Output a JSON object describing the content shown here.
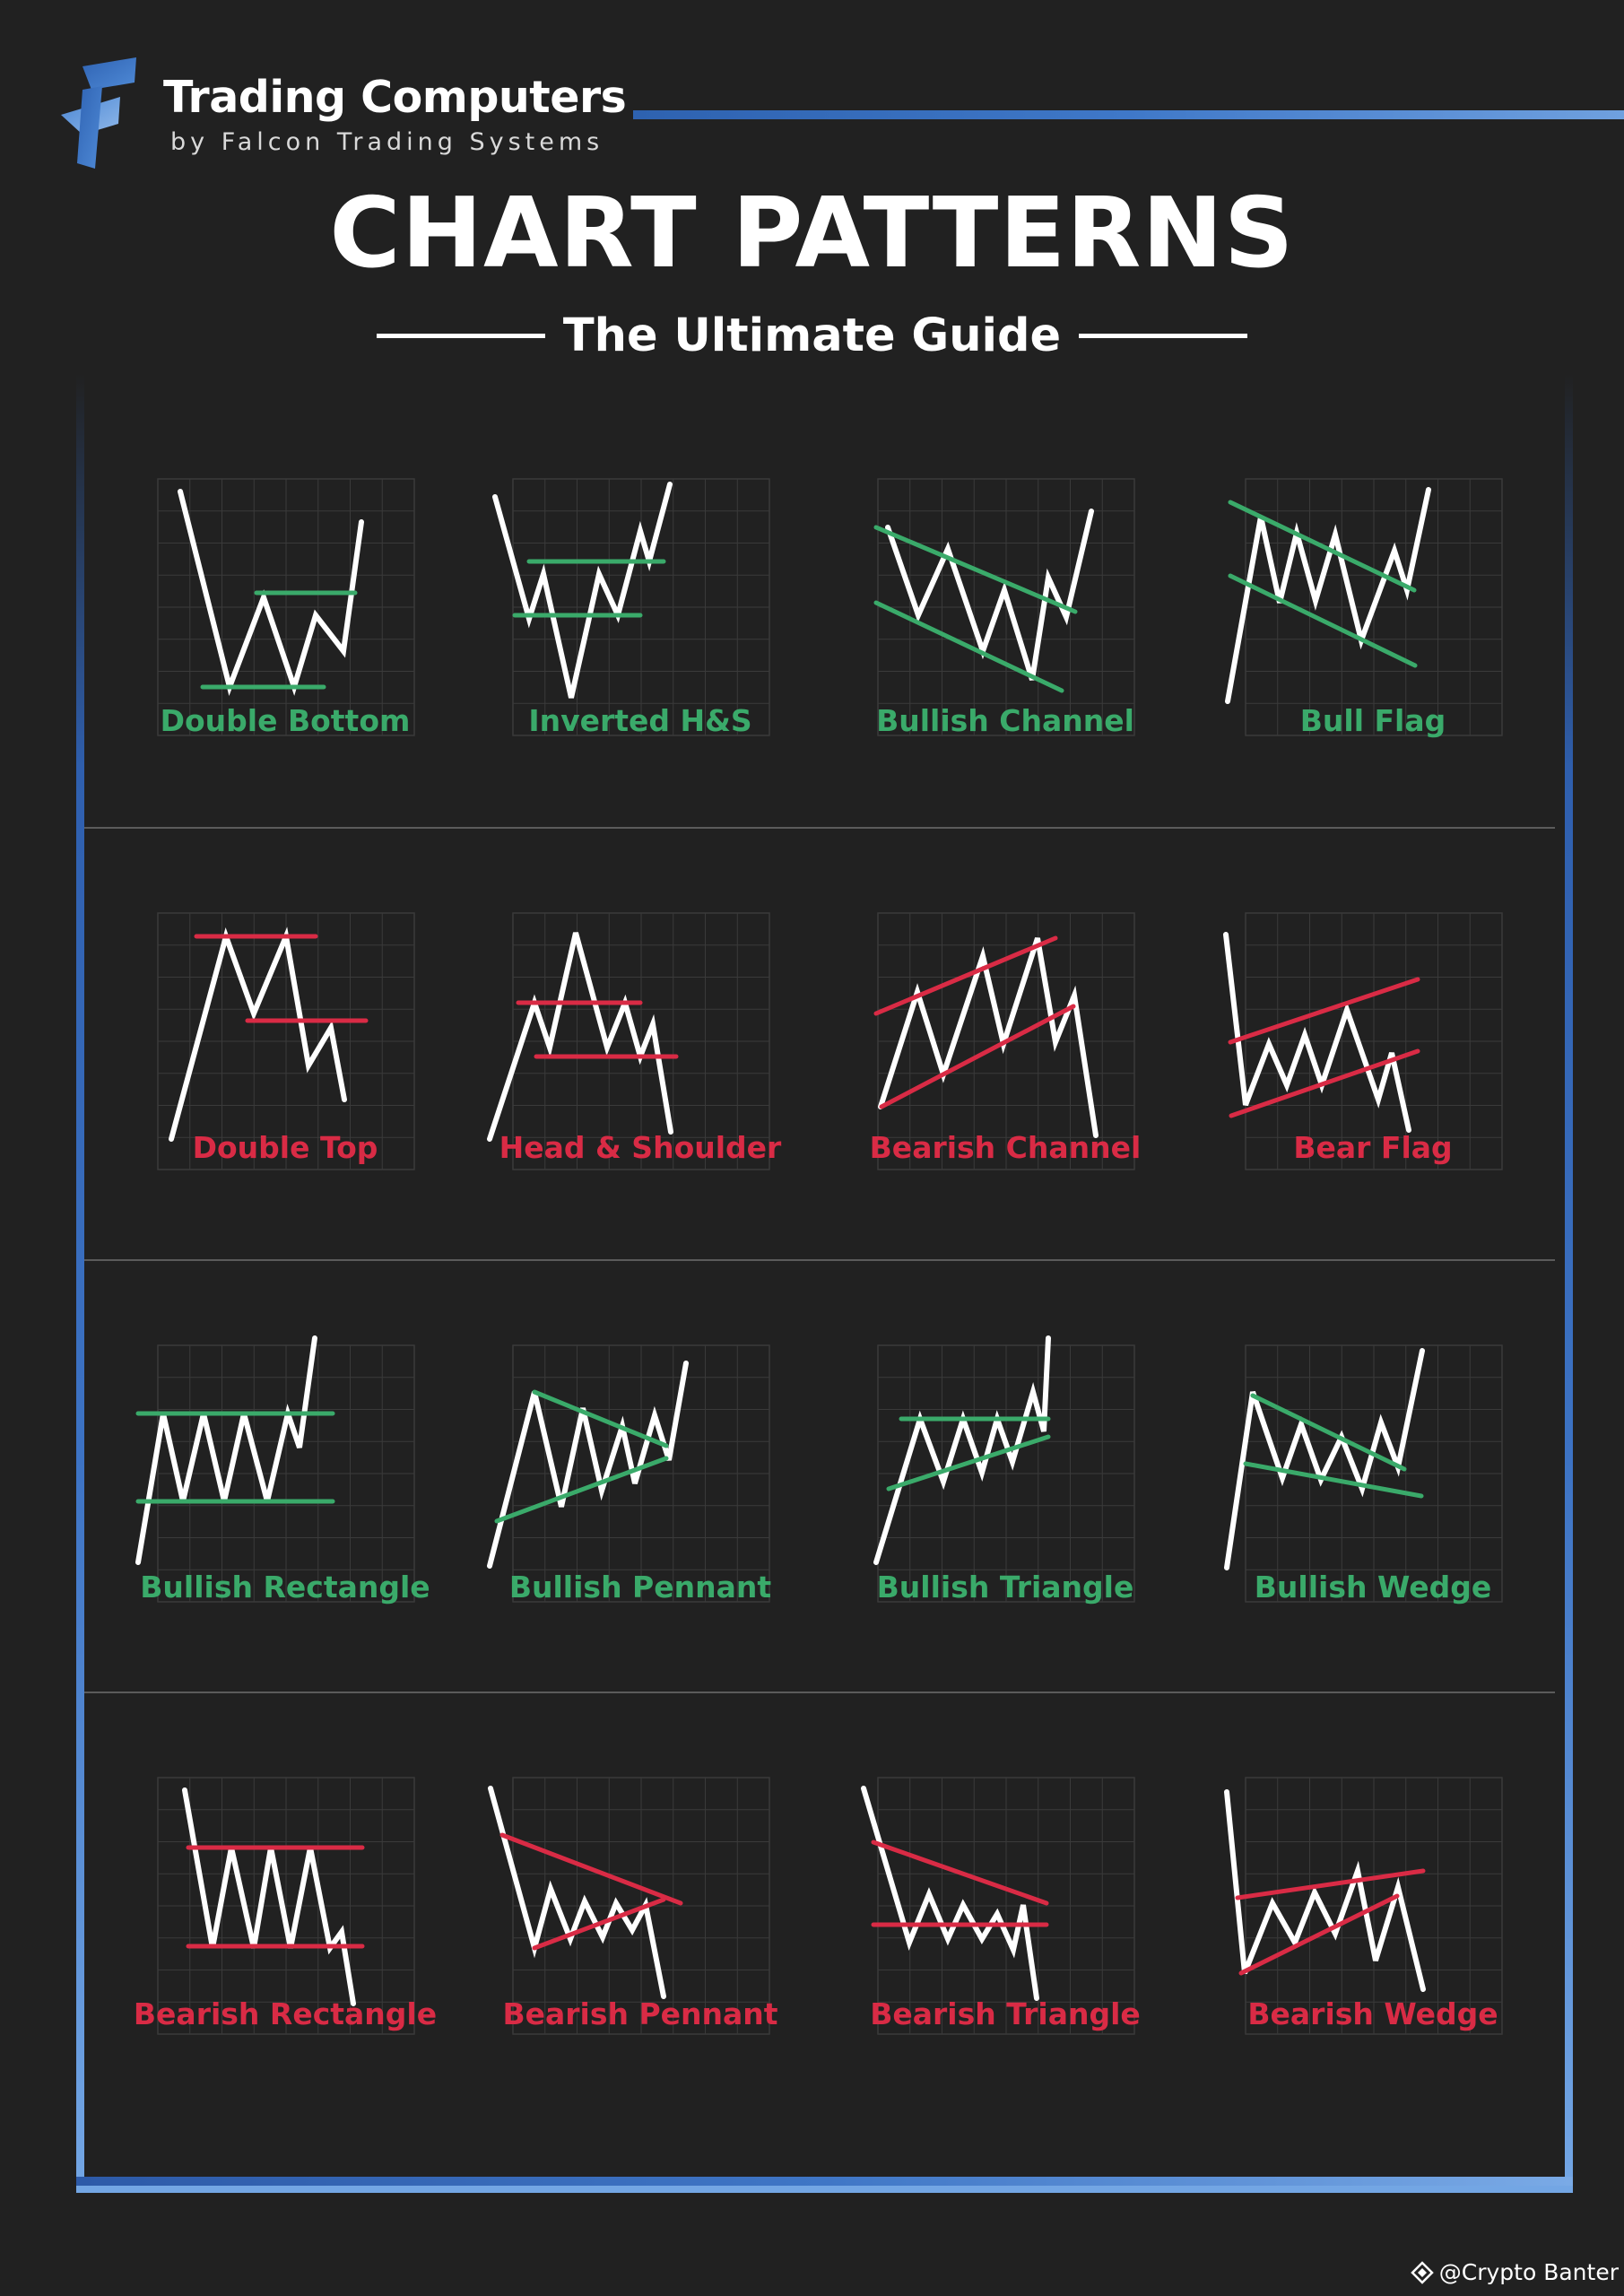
{
  "brand": {
    "name": "Trading Computers",
    "tagline": "by Falcon Trading Systems"
  },
  "title": "CHART PATTERNS",
  "subtitle": "The Ultimate Guide",
  "credit": "@Crypto Banter",
  "colors": {
    "background": "#212121",
    "bullish": "#3aaa6a",
    "bearish": "#d92b45",
    "price_line": "#ffffff",
    "accent_blue": "#3f76c6",
    "grid": "#3a3a3a"
  },
  "patterns": [
    {
      "label": "Double Bottom",
      "bias": "bullish"
    },
    {
      "label": "Inverted H&S",
      "bias": "bullish"
    },
    {
      "label": "Bullish Channel",
      "bias": "bullish"
    },
    {
      "label": "Bull Flag",
      "bias": "bullish"
    },
    {
      "label": "Double Top",
      "bias": "bearish"
    },
    {
      "label": "Head & Shoulder",
      "bias": "bearish"
    },
    {
      "label": "Bearish Channel",
      "bias": "bearish"
    },
    {
      "label": "Bear Flag",
      "bias": "bearish"
    },
    {
      "label": "Bullish Rectangle",
      "bias": "bullish"
    },
    {
      "label": "Bullish Pennant",
      "bias": "bullish"
    },
    {
      "label": "Bullish Triangle",
      "bias": "bullish"
    },
    {
      "label": "Bullish Wedge",
      "bias": "bullish"
    },
    {
      "label": "Bearish Rectangle",
      "bias": "bearish"
    },
    {
      "label": "Bearish Pennant",
      "bias": "bearish"
    },
    {
      "label": "Bearish Triangle",
      "bias": "bearish"
    },
    {
      "label": "Bearish Wedge",
      "bias": "bearish"
    }
  ]
}
